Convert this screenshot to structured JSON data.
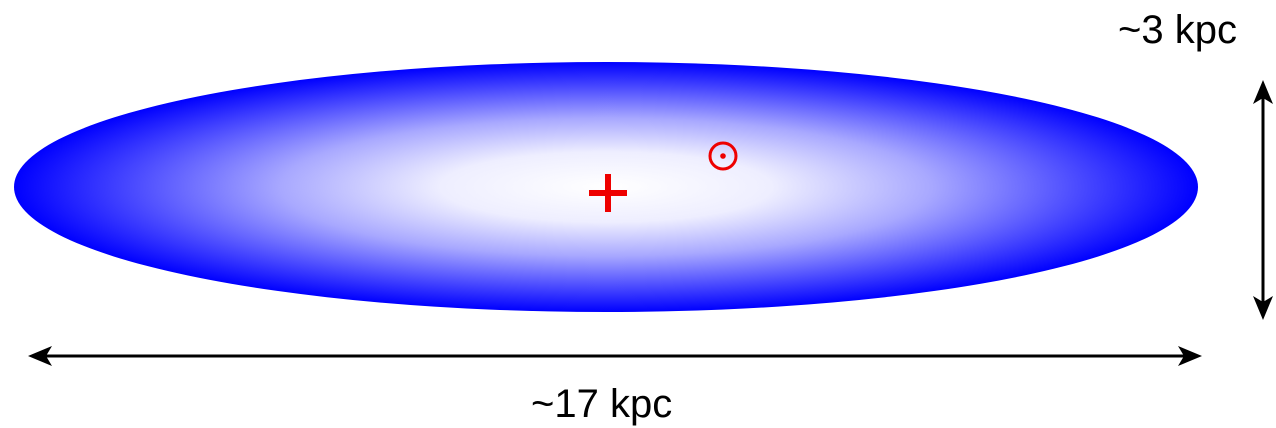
{
  "labels": {
    "height": "~3 kpc",
    "width": "~17 kpc"
  },
  "markers": {
    "galactic_center": "plus-icon",
    "sun": "sun-symbol-icon"
  },
  "colors": {
    "disk_edge": "#0000ff",
    "disk_core": "#ffffff",
    "marker": "#ee0000",
    "arrow": "#000000"
  }
}
